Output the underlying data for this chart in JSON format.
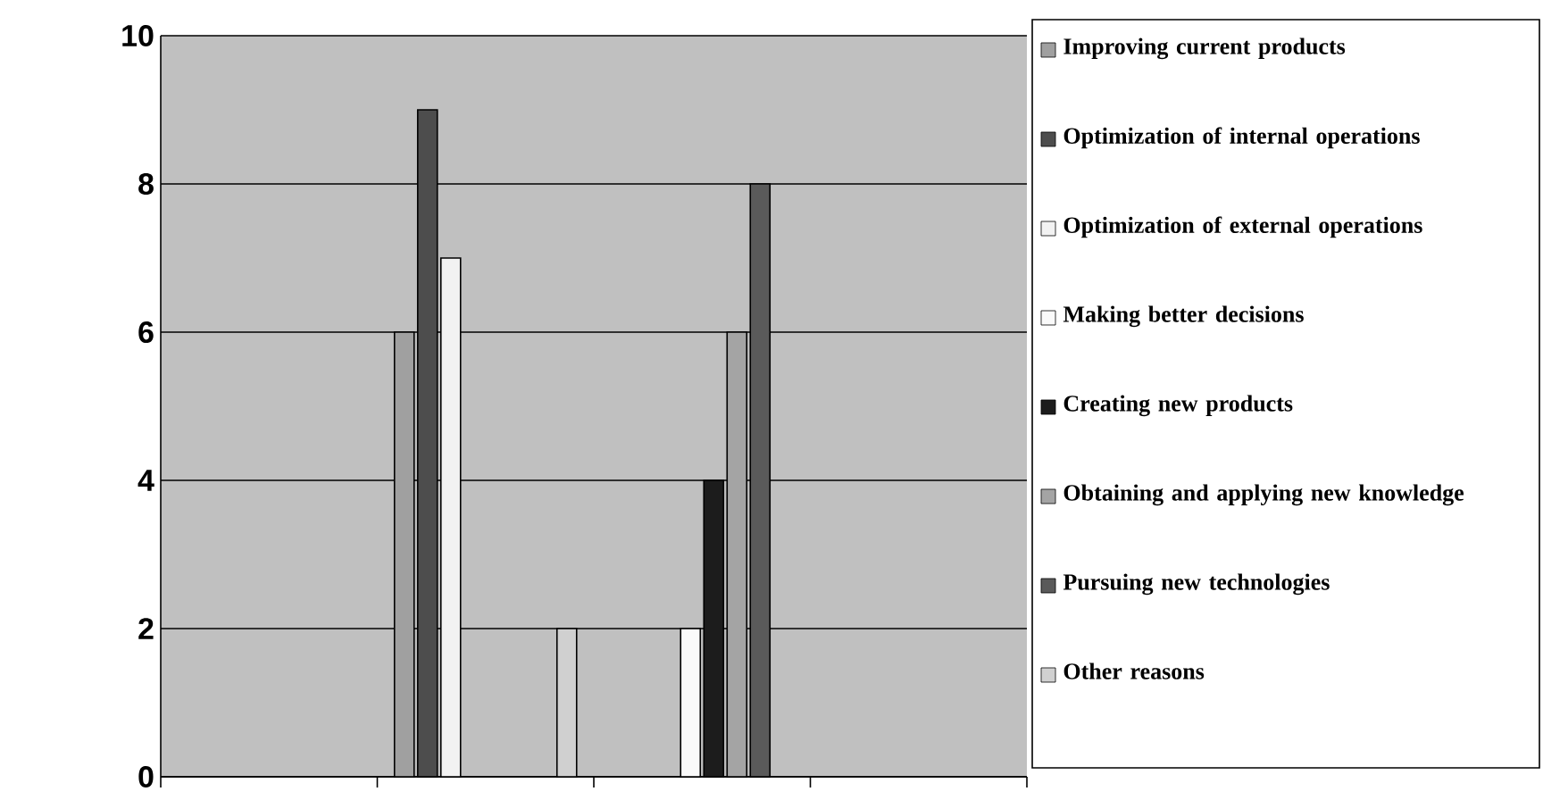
{
  "chart_data": {
    "type": "bar",
    "categories": [
      null,
      null,
      null,
      null
    ],
    "series": [
      {
        "name": "Improving current products",
        "color": "#a0a0a0",
        "values": [
          null,
          6,
          null,
          null
        ]
      },
      {
        "name": "Optimization of internal operations",
        "color": "#4d4d4d",
        "values": [
          null,
          9,
          null,
          null
        ]
      },
      {
        "name": "Optimization of external operations",
        "color": "#f2f2f2",
        "values": [
          null,
          7,
          null,
          null
        ]
      },
      {
        "name": "Making better decisions",
        "color": "#fafafa",
        "values": [
          null,
          null,
          2,
          null
        ]
      },
      {
        "name": "Creating new products",
        "color": "#1c1c1c",
        "values": [
          null,
          null,
          4,
          null
        ]
      },
      {
        "name": "Obtaining and applying new knowledge",
        "color": "#a4a4a4",
        "values": [
          null,
          null,
          6,
          null
        ]
      },
      {
        "name": "Pursuing new technologies",
        "color": "#5a5a5a",
        "values": [
          null,
          null,
          8,
          null
        ]
      },
      {
        "name": "Other reasons",
        "color": "#d0d0d0",
        "values": [
          null,
          2,
          null,
          null
        ]
      }
    ],
    "ylim": [
      0,
      10
    ],
    "yticks": [
      0,
      2,
      4,
      6,
      8,
      10
    ],
    "grid": "y",
    "legend": "right",
    "tick_labels": "y"
  }
}
